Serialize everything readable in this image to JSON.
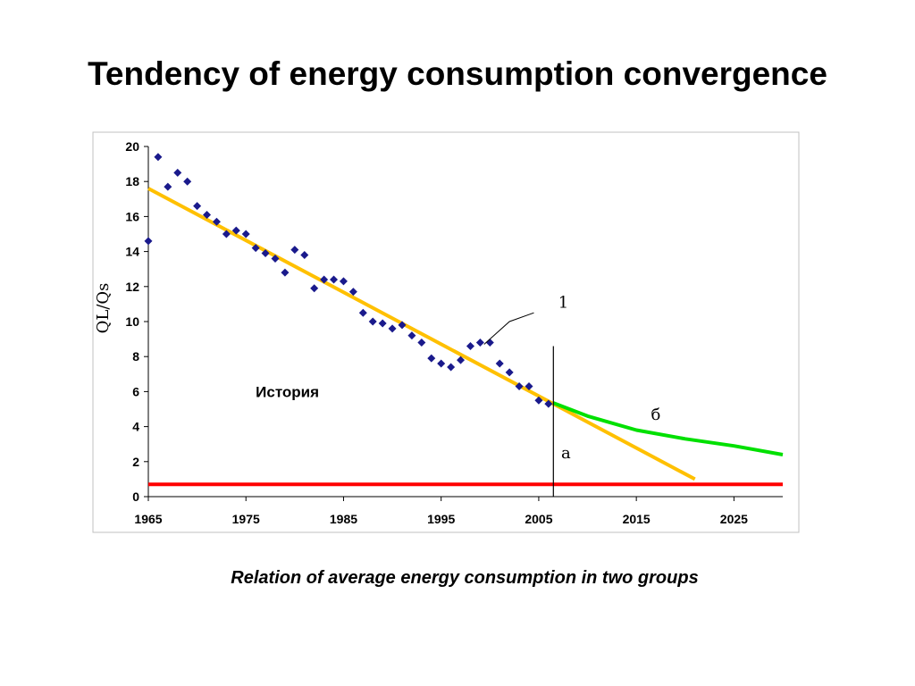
{
  "slide": {
    "title": "Tendency of energy consumption convergence",
    "caption": "Relation of average energy consumption in two groups"
  },
  "chart_data": {
    "type": "scatter",
    "ylabel": "QL/Qs",
    "xlim": [
      1965,
      2030
    ],
    "ylim": [
      0,
      20
    ],
    "x_ticks": [
      1965,
      1975,
      1985,
      1995,
      2005,
      2015,
      2025
    ],
    "y_ticks": [
      0,
      2,
      4,
      6,
      8,
      10,
      12,
      14,
      16,
      18,
      20
    ],
    "grid": false,
    "colors": {
      "points": "#1a1a8c",
      "trend": "#ffc000",
      "forecast": "#00e000",
      "baseline": "#ff0000",
      "divider": "#000000"
    },
    "series": [
      {
        "type": "scatter",
        "x": [
          1965,
          1966,
          1967,
          1968,
          1969,
          1970,
          1971,
          1972,
          1973,
          1974,
          1975,
          1976,
          1977,
          1978,
          1979,
          1980,
          1981,
          1982,
          1983,
          1984,
          1985,
          1986,
          1987,
          1988,
          1989,
          1990,
          1991,
          1992,
          1993,
          1994,
          1995,
          1996,
          1997,
          1998,
          1999,
          2000,
          2001,
          2002,
          2003,
          2004,
          2005,
          2006
        ],
        "y": [
          14.6,
          19.4,
          17.7,
          18.5,
          18.0,
          16.6,
          16.1,
          15.7,
          15.0,
          15.2,
          15.0,
          14.2,
          13.9,
          13.6,
          12.8,
          14.1,
          13.8,
          11.9,
          12.4,
          12.4,
          12.3,
          11.7,
          10.5,
          10.0,
          9.9,
          9.6,
          9.8,
          9.2,
          8.8,
          7.9,
          7.6,
          7.4,
          7.8,
          8.6,
          8.8,
          8.8,
          7.6,
          7.1,
          6.3,
          6.3,
          5.5,
          5.3
        ]
      },
      {
        "type": "line",
        "x": [
          1965,
          2021
        ],
        "y": [
          17.6,
          1.0
        ]
      },
      {
        "type": "line",
        "x": [
          2006.5,
          2010,
          2015,
          2020,
          2025,
          2030
        ],
        "y": [
          5.35,
          4.6,
          3.8,
          3.3,
          2.9,
          2.4
        ]
      },
      {
        "type": "line",
        "x": [
          1965,
          2030
        ],
        "y": [
          0.7,
          0.7
        ]
      }
    ],
    "annotations": [
      {
        "text": "История",
        "x": 1976,
        "y": 5.7
      },
      {
        "text": "1",
        "x": 2007,
        "y": 10.8
      },
      {
        "text": "б",
        "x": 2016.5,
        "y": 4.4
      },
      {
        "text": "a",
        "x": 2007.3,
        "y": 2.2
      }
    ],
    "vline_x": 2006.5
  }
}
